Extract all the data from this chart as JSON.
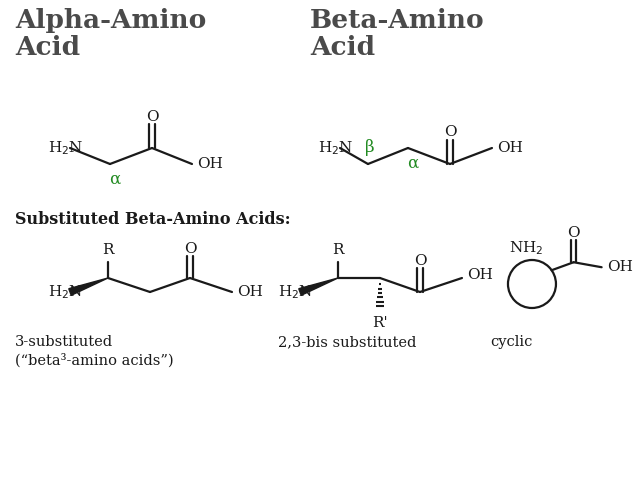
{
  "bg_color": "#FFFFFF",
  "title_color": "#4a4a4a",
  "green_color": "#228B22",
  "black_color": "#1a1a1a",
  "alpha_title": "Alpha-Amino\nAcid",
  "beta_title": "Beta-Amino\nAcid",
  "sub_header": "Substituted Beta-Amino Acids:",
  "label_3sub": "3-substituted\n(“beta³-amino acids”)",
  "label_23sub": "2,3-bis substituted",
  "label_cyclic": "cyclic"
}
